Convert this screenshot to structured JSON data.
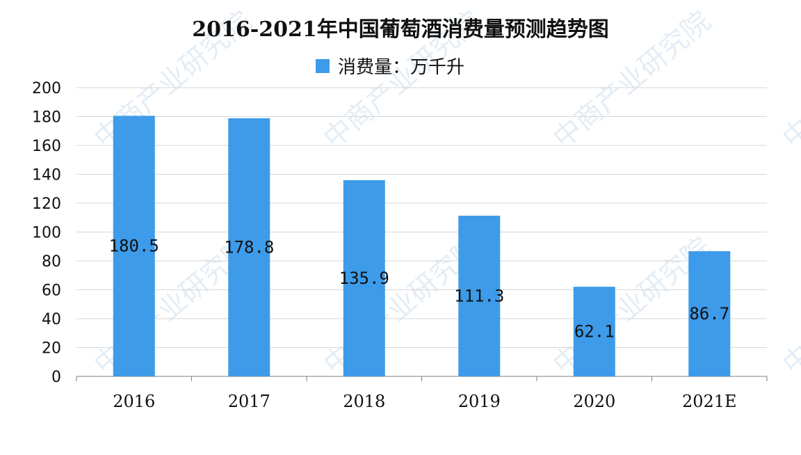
{
  "chart_data": {
    "type": "bar",
    "title": "2016-2021年中国葡萄酒消费量预测趋势图",
    "categories": [
      "2016",
      "2017",
      "2018",
      "2019",
      "2020",
      "2021E"
    ],
    "series": [
      {
        "name": "消费量：万千升",
        "color": "#3d9be9",
        "values": [
          180.5,
          178.8,
          135.9,
          111.3,
          62.1,
          86.7
        ],
        "labels": [
          "180.5",
          "178.8",
          "135.9",
          "111.3",
          "62.1",
          "86.7"
        ]
      }
    ],
    "ylim": [
      0,
      200
    ],
    "yticks": [
      "0",
      "20",
      "40",
      "60",
      "80",
      "100",
      "120",
      "140",
      "160",
      "180",
      "200"
    ],
    "grid": true,
    "legend_position": "top-center",
    "data_label_position": "mid-bar"
  },
  "watermark": {
    "text": "中商产业研究院",
    "color": "#cfe0ee"
  }
}
